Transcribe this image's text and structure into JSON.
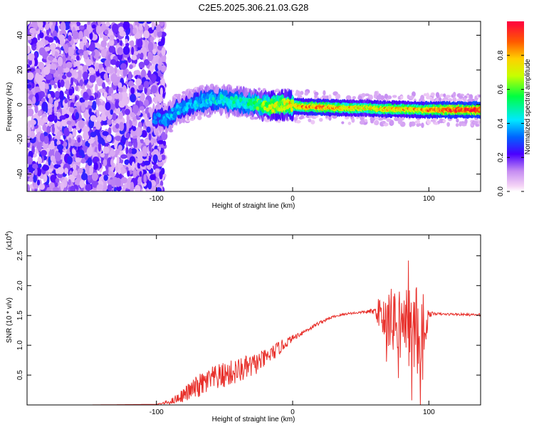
{
  "chart_data": [
    {
      "type": "heatmap",
      "title": "C2E5.2025.306.21.03.G28",
      "xlabel": "Height of straight line (km)",
      "ylabel": "Frequency (Hz)",
      "xlim": [
        -195,
        138
      ],
      "ylim": [
        -50,
        48
      ],
      "xticks": [
        -100,
        0,
        100
      ],
      "yticks": [
        -40,
        -20,
        0,
        20,
        40
      ],
      "colorbar": {
        "label": "Normalized spectral amplitude",
        "range": [
          0,
          1
        ],
        "ticks": [
          0.0,
          0.2,
          0.4,
          0.6,
          0.8
        ]
      },
      "ridge": [
        {
          "x": -100,
          "y": -8,
          "amp": 0.35
        },
        {
          "x": -92,
          "y": -8,
          "amp": 0.4
        },
        {
          "x": -85,
          "y": -3,
          "amp": 0.4
        },
        {
          "x": -75,
          "y": 0,
          "amp": 0.4
        },
        {
          "x": -65,
          "y": 2,
          "amp": 0.45
        },
        {
          "x": -55,
          "y": 3,
          "amp": 0.45
        },
        {
          "x": -45,
          "y": 2,
          "amp": 0.5
        },
        {
          "x": -35,
          "y": 1,
          "amp": 0.5
        },
        {
          "x": -25,
          "y": 0,
          "amp": 0.6
        },
        {
          "x": -15,
          "y": -1,
          "amp": 0.7
        },
        {
          "x": -5,
          "y": 0,
          "amp": 0.75
        },
        {
          "x": 5,
          "y": -1,
          "amp": 0.85
        },
        {
          "x": 20,
          "y": -1.5,
          "amp": 0.9
        },
        {
          "x": 40,
          "y": -2,
          "amp": 0.8
        },
        {
          "x": 55,
          "y": -2,
          "amp": 0.75
        },
        {
          "x": 65,
          "y": -2.5,
          "amp": 0.8
        },
        {
          "x": 80,
          "y": -2.5,
          "amp": 0.8
        },
        {
          "x": 95,
          "y": -3,
          "amp": 0.85
        },
        {
          "x": 110,
          "y": -3,
          "amp": 0.95
        },
        {
          "x": 125,
          "y": -3,
          "amp": 1.0
        },
        {
          "x": 138,
          "y": -3,
          "amp": 1.0
        }
      ]
    },
    {
      "type": "line",
      "xlabel": "Height of straight line (km)",
      "ylabel": "SNR (10 * v/v)",
      "yscale_label_prefix": "(x10",
      "yscale_label_exp": "4",
      "yscale_label_suffix": ")",
      "xlim": [
        -195,
        138
      ],
      "ylim": [
        0,
        2.85
      ],
      "xticks": [
        -100,
        0,
        100
      ],
      "yticks": [
        0.5,
        1.0,
        1.5,
        2.0,
        2.5
      ],
      "line_color": "#e8302b",
      "series": [
        {
          "name": "SNR",
          "x": [
            -195,
            -150,
            -100,
            -90,
            -80,
            -70,
            -60,
            -50,
            -40,
            -30,
            -20,
            -10,
            0,
            10,
            20,
            30,
            40,
            50,
            60,
            65,
            70,
            80,
            90,
            95,
            100,
            105,
            110,
            120,
            130,
            138
          ],
          "y": [
            0.0,
            0.0,
            0.01,
            0.05,
            0.17,
            0.3,
            0.42,
            0.5,
            0.57,
            0.65,
            0.78,
            0.95,
            1.12,
            1.25,
            1.38,
            1.48,
            1.53,
            1.55,
            1.57,
            1.55,
            1.45,
            1.35,
            1.25,
            1.2,
            1.52,
            1.53,
            1.52,
            1.52,
            1.51,
            1.51
          ],
          "noise_amp": [
            0,
            0,
            0,
            0.04,
            0.12,
            0.2,
            0.22,
            0.22,
            0.22,
            0.2,
            0.15,
            0.12,
            0.05,
            0.04,
            0.03,
            0.02,
            0.02,
            0.02,
            0.05,
            0.35,
            0.5,
            0.6,
            0.8,
            0.9,
            0.05,
            0.02,
            0.02,
            0.02,
            0.02,
            0.02
          ]
        }
      ]
    }
  ]
}
